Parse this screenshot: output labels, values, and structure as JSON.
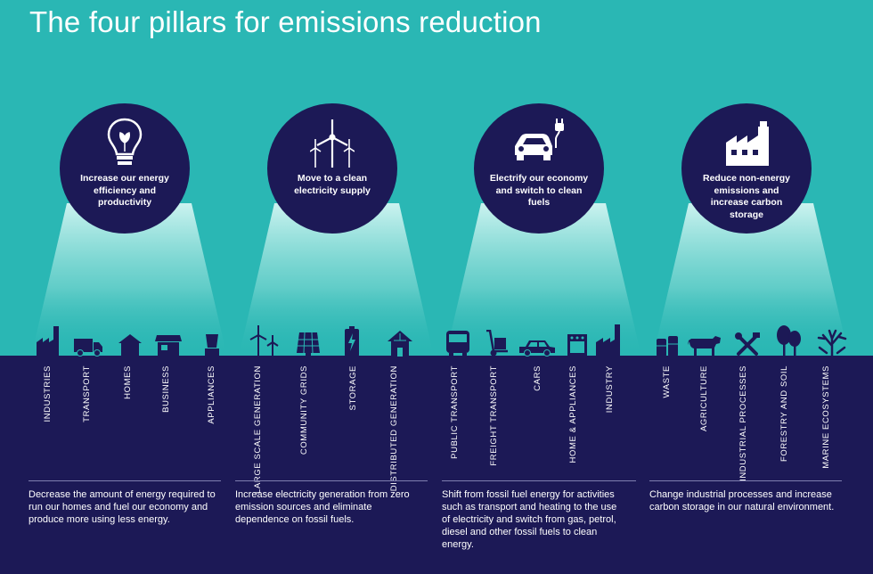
{
  "title": "The four pillars for emissions reduction",
  "colors": {
    "teal": "#2ab7b4",
    "navy": "#1c1956",
    "beam": "#c7f1ee",
    "white": "#ffffff"
  },
  "pillars": [
    {
      "icon": "lightbulb-icon",
      "label": "Increase our energy efficiency and productivity",
      "sectors": [
        {
          "icon": "factory-icon",
          "label": "INDUSTRIES"
        },
        {
          "icon": "truck-icon",
          "label": "TRANSPORT"
        },
        {
          "icon": "house-icon",
          "label": "HOMES"
        },
        {
          "icon": "shop-icon",
          "label": "BUSINESS"
        },
        {
          "icon": "blender-icon",
          "label": "APPLIANCES"
        }
      ],
      "description": "Decrease the amount of energy required to run our homes and fuel our economy and produce more using less energy."
    },
    {
      "icon": "wind-turbines-icon",
      "label": "Move to a clean electricity supply",
      "sectors": [
        {
          "icon": "wind-turbine-icon",
          "label": "LARGE SCALE GENERATION"
        },
        {
          "icon": "solar-panel-icon",
          "label": "COMMUNITY GRIDS"
        },
        {
          "icon": "battery-icon",
          "label": "STORAGE"
        },
        {
          "icon": "solar-house-icon",
          "label": "DISTRIBUTED GENERATION"
        }
      ],
      "description": "Increase electricity generation from zero emission sources and eliminate dependence on fossil fuels."
    },
    {
      "icon": "electric-car-plug-icon",
      "label": "Electrify our economy and switch to clean fuels",
      "sectors": [
        {
          "icon": "bus-icon",
          "label": "PUBLIC TRANSPORT"
        },
        {
          "icon": "hand-truck-icon",
          "label": "FREIGHT TRANSPORT"
        },
        {
          "icon": "car-icon",
          "label": "CARS"
        },
        {
          "icon": "oven-icon",
          "label": "HOME & APPLIANCES"
        },
        {
          "icon": "factory-icon",
          "label": "INDUSTRY"
        }
      ],
      "description": "Shift from fossil fuel energy for activities such as transport and heating to the use of electricity and switch from gas, petrol, diesel and other fossil fuels to clean energy."
    },
    {
      "icon": "factory-icon",
      "label": "Reduce non-energy emissions and increase carbon storage",
      "sectors": [
        {
          "icon": "barrels-icon",
          "label": "WASTE"
        },
        {
          "icon": "cow-icon",
          "label": "AGRICULTURE"
        },
        {
          "icon": "tools-icon",
          "label": "INDUSTRIAL PROCESSES"
        },
        {
          "icon": "trees-icon",
          "label": "FORESTRY AND SOIL"
        },
        {
          "icon": "coral-icon",
          "label": "MARINE ECOSYSTEMS"
        }
      ],
      "description": "Change industrial processes and increase carbon storage in our natural environment."
    }
  ]
}
